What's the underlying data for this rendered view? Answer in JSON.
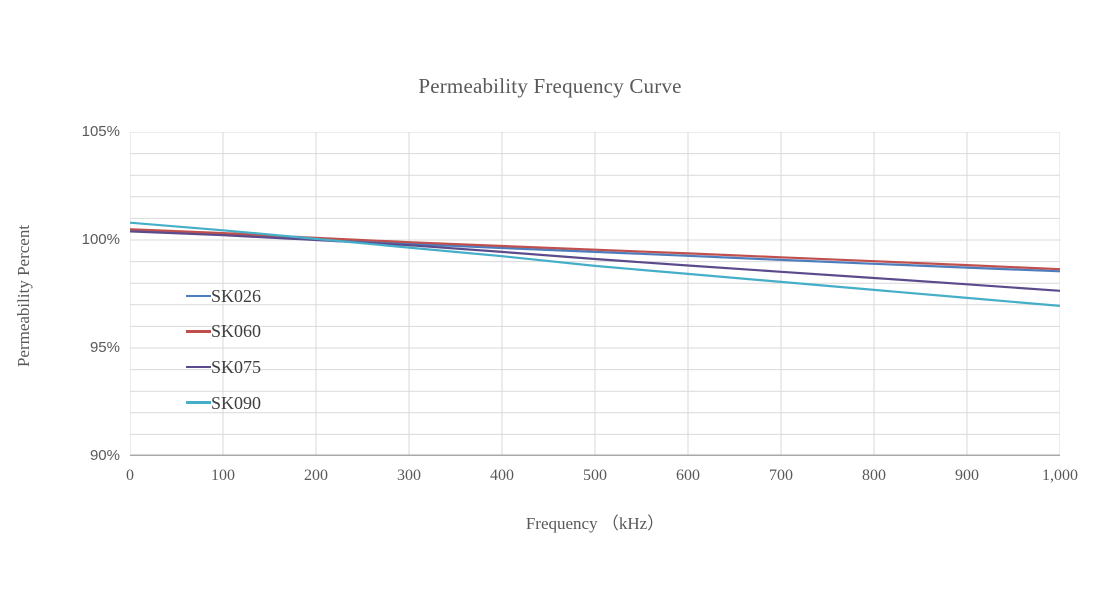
{
  "chart": {
    "title": "Permeability Frequency Curve",
    "xlabel": "Frequency （kHz）",
    "ylabel": "Permeability Percent"
  },
  "chart_data": {
    "type": "line",
    "title": "Permeability Frequency Curve",
    "xlabel": "Frequency （kHz）",
    "ylabel": "Permeability Percent",
    "xlim": [
      0,
      1000
    ],
    "ylim": [
      90,
      105
    ],
    "grid": {
      "on": true,
      "x_interval": 100,
      "y_interval": 1
    },
    "legend_position": "inside-left",
    "x": [
      0,
      100,
      200,
      300,
      400,
      500,
      600,
      700,
      800,
      900,
      1000
    ],
    "series": [
      {
        "name": "SK026",
        "color": "#4e7dbe",
        "values": [
          100.45,
          100.27,
          100.05,
          99.82,
          99.63,
          99.45,
          99.27,
          99.08,
          98.9,
          98.72,
          98.55
        ]
      },
      {
        "name": "SK060",
        "color": "#c0504d",
        "values": [
          100.5,
          100.32,
          100.1,
          99.9,
          99.72,
          99.55,
          99.38,
          99.2,
          99.02,
          98.84,
          98.65
        ]
      },
      {
        "name": "SK075",
        "color": "#5c4b8c",
        "values": [
          100.4,
          100.22,
          100.0,
          99.76,
          99.45,
          99.12,
          98.82,
          98.53,
          98.24,
          97.95,
          97.65
        ]
      },
      {
        "name": "SK090",
        "color": "#45aec8",
        "values": [
          100.8,
          100.45,
          100.05,
          99.65,
          99.25,
          98.8,
          98.43,
          98.06,
          97.69,
          97.32,
          96.95
        ]
      }
    ],
    "x_ticks": [
      {
        "value": 0,
        "label": "0"
      },
      {
        "value": 100,
        "label": "100"
      },
      {
        "value": 200,
        "label": "200"
      },
      {
        "value": 300,
        "label": "300"
      },
      {
        "value": 400,
        "label": "400"
      },
      {
        "value": 500,
        "label": "500"
      },
      {
        "value": 600,
        "label": "600"
      },
      {
        "value": 700,
        "label": "700"
      },
      {
        "value": 800,
        "label": "800"
      },
      {
        "value": 900,
        "label": "900"
      },
      {
        "value": 1000,
        "label": "1,000"
      }
    ],
    "y_ticks": [
      {
        "value": 105,
        "label": "105%"
      },
      {
        "value": 100,
        "label": "100%"
      },
      {
        "value": 95,
        "label": "95%"
      },
      {
        "value": 90,
        "label": "90%"
      }
    ],
    "colors": {
      "gridline": "#d9d9d9",
      "axis": "#a9a9a9",
      "title_text": "#595959",
      "tick_text": "#595959",
      "legend_text": "#3f3f3f"
    }
  }
}
